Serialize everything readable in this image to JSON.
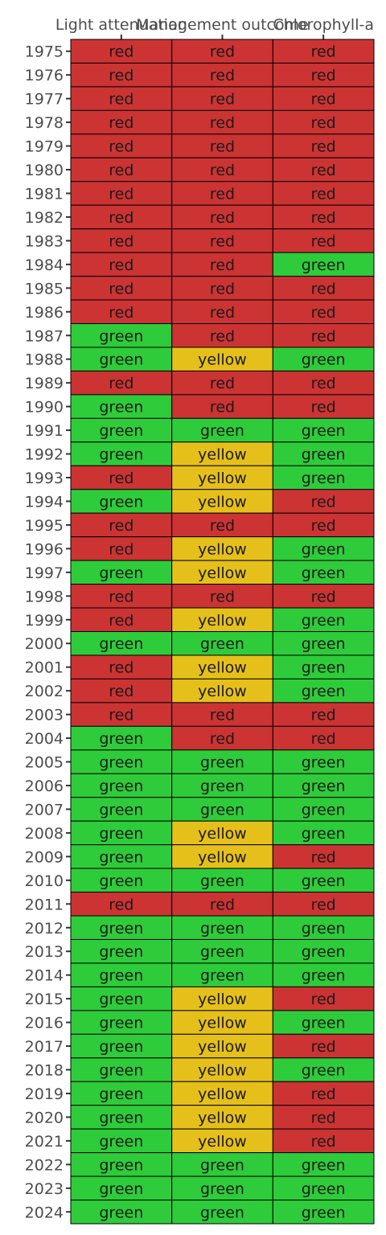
{
  "chart_data": {
    "type": "heatmap",
    "title": "",
    "xlabel": "",
    "ylabel": "",
    "x_position": "top",
    "legend": "none",
    "columns": [
      "Light attenuation",
      "Management outcome",
      "Chlorophyll-a"
    ],
    "rows": [
      "1975",
      "1976",
      "1977",
      "1978",
      "1979",
      "1980",
      "1981",
      "1982",
      "1983",
      "1984",
      "1985",
      "1986",
      "1987",
      "1988",
      "1989",
      "1990",
      "1991",
      "1992",
      "1993",
      "1994",
      "1995",
      "1996",
      "1997",
      "1998",
      "1999",
      "2000",
      "2001",
      "2002",
      "2003",
      "2004",
      "2005",
      "2006",
      "2007",
      "2008",
      "2009",
      "2010",
      "2011",
      "2012",
      "2013",
      "2014",
      "2015",
      "2016",
      "2017",
      "2018",
      "2019",
      "2020",
      "2021",
      "2022",
      "2023",
      "2024"
    ],
    "colors": {
      "red": "#cc3333",
      "yellow": "#e6c01a",
      "green": "#2ecc3a"
    },
    "cell_border_color": "#000000",
    "values": [
      [
        "red",
        "red",
        "red"
      ],
      [
        "red",
        "red",
        "red"
      ],
      [
        "red",
        "red",
        "red"
      ],
      [
        "red",
        "red",
        "red"
      ],
      [
        "red",
        "red",
        "red"
      ],
      [
        "red",
        "red",
        "red"
      ],
      [
        "red",
        "red",
        "red"
      ],
      [
        "red",
        "red",
        "red"
      ],
      [
        "red",
        "red",
        "red"
      ],
      [
        "red",
        "red",
        "green"
      ],
      [
        "red",
        "red",
        "red"
      ],
      [
        "red",
        "red",
        "red"
      ],
      [
        "green",
        "red",
        "red"
      ],
      [
        "green",
        "yellow",
        "green"
      ],
      [
        "red",
        "red",
        "red"
      ],
      [
        "green",
        "red",
        "red"
      ],
      [
        "green",
        "green",
        "green"
      ],
      [
        "green",
        "yellow",
        "green"
      ],
      [
        "red",
        "yellow",
        "green"
      ],
      [
        "green",
        "yellow",
        "red"
      ],
      [
        "red",
        "red",
        "red"
      ],
      [
        "red",
        "yellow",
        "green"
      ],
      [
        "green",
        "yellow",
        "green"
      ],
      [
        "red",
        "red",
        "red"
      ],
      [
        "red",
        "yellow",
        "green"
      ],
      [
        "green",
        "green",
        "green"
      ],
      [
        "red",
        "yellow",
        "green"
      ],
      [
        "red",
        "yellow",
        "green"
      ],
      [
        "red",
        "red",
        "red"
      ],
      [
        "green",
        "red",
        "red"
      ],
      [
        "green",
        "green",
        "green"
      ],
      [
        "green",
        "green",
        "green"
      ],
      [
        "green",
        "green",
        "green"
      ],
      [
        "green",
        "yellow",
        "green"
      ],
      [
        "green",
        "yellow",
        "red"
      ],
      [
        "green",
        "green",
        "green"
      ],
      [
        "red",
        "red",
        "red"
      ],
      [
        "green",
        "green",
        "green"
      ],
      [
        "green",
        "green",
        "green"
      ],
      [
        "green",
        "green",
        "green"
      ],
      [
        "green",
        "yellow",
        "red"
      ],
      [
        "green",
        "yellow",
        "green"
      ],
      [
        "green",
        "yellow",
        "red"
      ],
      [
        "green",
        "yellow",
        "green"
      ],
      [
        "green",
        "yellow",
        "red"
      ],
      [
        "green",
        "yellow",
        "red"
      ],
      [
        "green",
        "yellow",
        "red"
      ],
      [
        "green",
        "green",
        "green"
      ],
      [
        "green",
        "green",
        "green"
      ],
      [
        "green",
        "green",
        "green"
      ]
    ]
  }
}
